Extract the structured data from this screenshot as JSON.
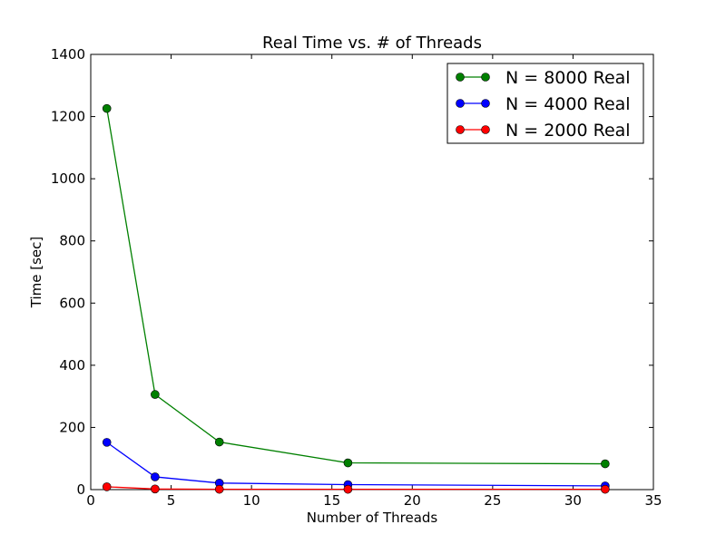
{
  "chart_data": {
    "type": "line",
    "title": "Real Time vs. # of Threads",
    "xlabel": "Number of Threads",
    "ylabel": "Time [sec]",
    "xlim": [
      0,
      35
    ],
    "ylim": [
      0,
      1400
    ],
    "xticks": [
      0,
      5,
      10,
      15,
      20,
      25,
      30,
      35
    ],
    "yticks": [
      0,
      200,
      400,
      600,
      800,
      1000,
      1200,
      1400
    ],
    "grid": false,
    "legend_position": "top-right",
    "x": [
      1,
      4,
      8,
      16,
      32
    ],
    "series": [
      {
        "name": "N = 8000 Real",
        "color": "#008000",
        "values": [
          1226,
          306,
          153,
          86,
          83
        ]
      },
      {
        "name": "N = 4000 Real",
        "color": "#0000ff",
        "values": [
          152,
          41,
          21,
          16,
          12
        ]
      },
      {
        "name": "N = 2000 Real",
        "color": "#ff0000",
        "values": [
          9,
          2,
          1,
          1,
          1
        ]
      }
    ]
  }
}
